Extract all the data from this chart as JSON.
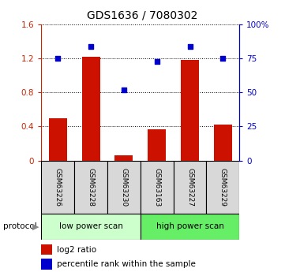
{
  "title": "GDS1636 / 7080302",
  "samples": [
    "GSM63226",
    "GSM63228",
    "GSM63230",
    "GSM63163",
    "GSM63227",
    "GSM63229"
  ],
  "log2_ratio": [
    0.5,
    1.22,
    0.06,
    0.37,
    1.18,
    0.42
  ],
  "percentile_rank": [
    75,
    84,
    52,
    73,
    84,
    75
  ],
  "bar_color": "#cc1100",
  "dot_color": "#0000cc",
  "left_ylim": [
    0,
    1.6
  ],
  "right_ylim": [
    0,
    100
  ],
  "left_yticks": [
    0,
    0.4,
    0.8,
    1.2,
    1.6
  ],
  "right_yticks": [
    0,
    25,
    50,
    75,
    100
  ],
  "right_yticklabels": [
    "0",
    "25",
    "50",
    "75",
    "100%"
  ],
  "left_tick_color": "#cc2200",
  "right_tick_color": "#0000cc",
  "group1_label": "low power scan",
  "group2_label": "high power scan",
  "group1_color": "#ccffcc",
  "group2_color": "#66ee66",
  "protocol_label": "protocol",
  "legend_bar_label": "log2 ratio",
  "legend_dot_label": "percentile rank within the sample",
  "sample_bg_color": "#d8d8d8",
  "plot_bg": "#ffffff",
  "title_fontsize": 10,
  "tick_fontsize": 7.5,
  "sample_fontsize": 6.5,
  "legend_fontsize": 7.5,
  "proto_fontsize": 7.5
}
